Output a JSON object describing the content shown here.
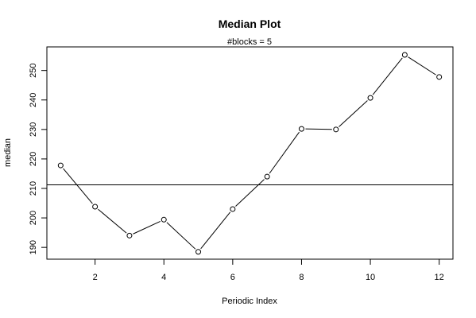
{
  "chart_data": {
    "type": "line",
    "title": "Median Plot",
    "subtitle": "#blocks =  5",
    "xlabel": "Periodic Index",
    "ylabel": "median",
    "x": [
      1,
      2,
      3,
      4,
      5,
      6,
      7,
      8,
      9,
      10,
      11,
      12
    ],
    "series": [
      {
        "values": [
          217.8,
          203.8,
          194.0,
          199.4,
          188.5,
          203.0,
          214.0,
          230.2,
          230.0,
          240.7,
          255.3,
          247.8
        ]
      }
    ],
    "reference_line": 211.2,
    "xlim": [
      0.6,
      12.4
    ],
    "ylim": [
      186,
      258
    ],
    "xticks": [
      2,
      4,
      6,
      8,
      10,
      12
    ],
    "yticks": [
      190,
      200,
      210,
      220,
      230,
      240,
      250
    ],
    "marker": "open-circle",
    "line_color": "#000000",
    "grid": false
  }
}
